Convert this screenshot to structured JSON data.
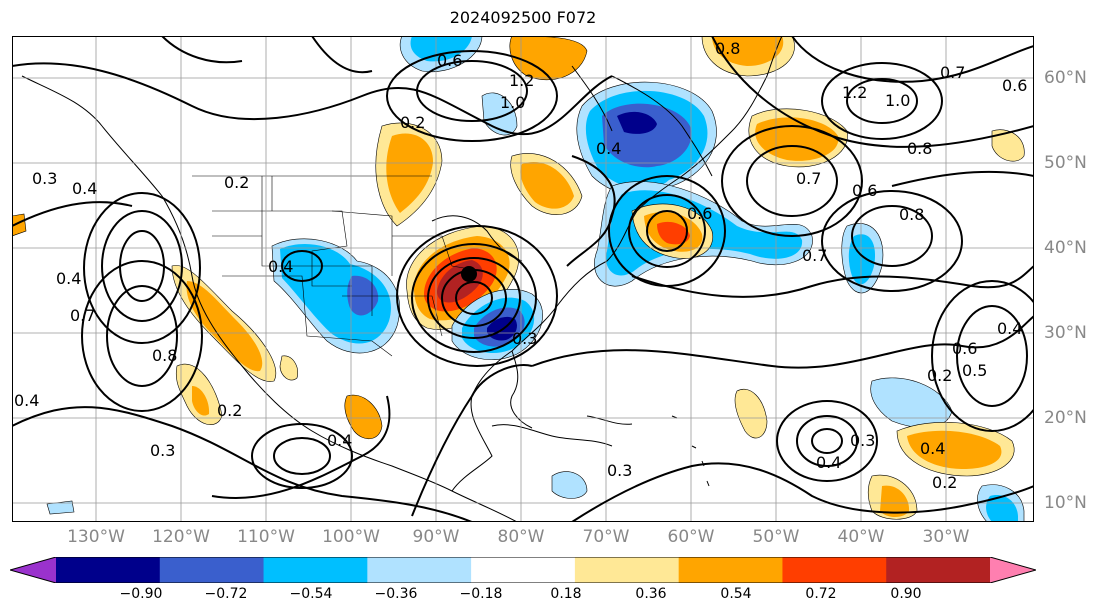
{
  "title": "2024092500 F072",
  "longitude_labels": [
    "130°W",
    "120°W",
    "110°W",
    "100°W",
    "90°W",
    "80°W",
    "70°W",
    "60°W",
    "50°W",
    "40°W",
    "30°W"
  ],
  "latitude_labels": [
    "60°N",
    "50°N",
    "40°N",
    "30°N",
    "20°N",
    "10°N"
  ],
  "colorbar": {
    "ticks": [
      "−0.90",
      "−0.72",
      "−0.54",
      "−0.36",
      "−0.18",
      "0.18",
      "0.36",
      "0.54",
      "0.72",
      "0.90"
    ],
    "colors": [
      "#9a32cd",
      "#00008b",
      "#3a5fcd",
      "#00bfff",
      "#b0e2ff",
      "#ffffff",
      "#ffe896",
      "#ffa500",
      "#ff3e00",
      "#b22222",
      "#ff7fb0"
    ]
  },
  "contour_labels": [
    "0.6",
    "1.2",
    "1.0",
    "0.8",
    "0.7",
    "1.2",
    "1.0",
    "0.6",
    "0.4",
    "0.2",
    "0.3",
    "0.4",
    "0.8",
    "0.7",
    "0.4",
    "0.7",
    "0.2",
    "0.4",
    "0.6",
    "0.8",
    "0.7",
    "0.6",
    "0.8",
    "0.4",
    "0.3",
    "0.2",
    "0.3",
    "0.4",
    "0.2",
    "0.4",
    "0.3",
    "0.2",
    "0.4",
    "0.3",
    "0.6",
    "0.5",
    "0.4"
  ],
  "storm_marker": "black-dot"
}
